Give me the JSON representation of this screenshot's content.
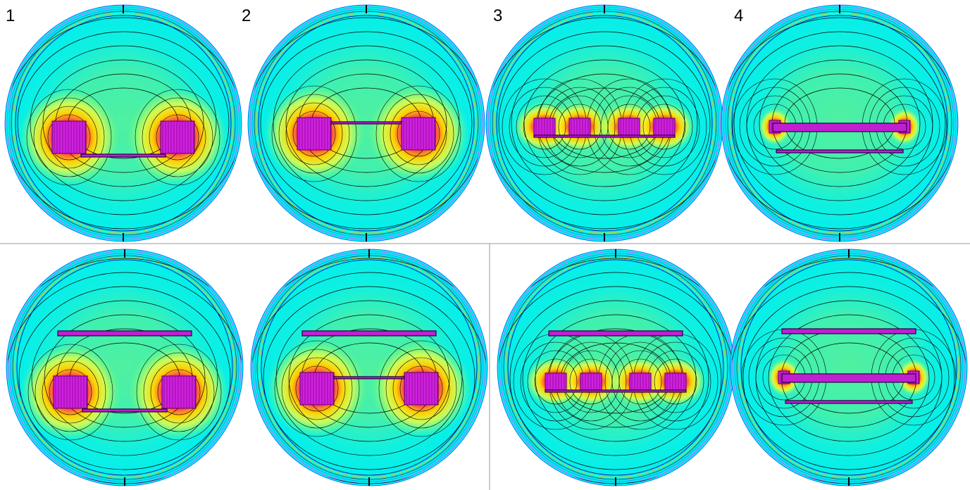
{
  "labels": [
    "1",
    "2",
    "3",
    "4"
  ]
}
